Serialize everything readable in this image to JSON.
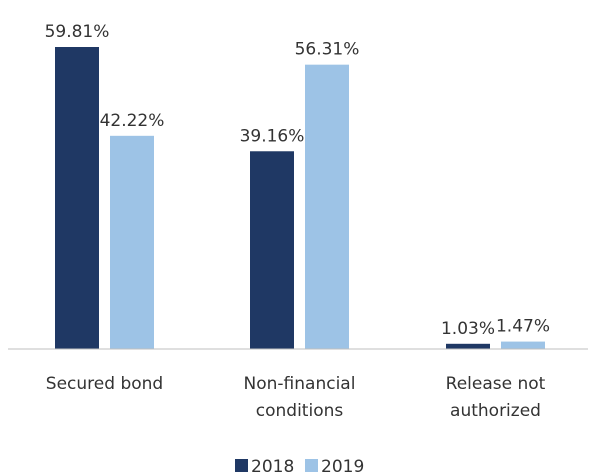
{
  "chart_data": {
    "type": "bar",
    "title": "",
    "xlabel": "",
    "ylabel": "",
    "categories": [
      [
        "Secured bond"
      ],
      [
        "Non-financial",
        "conditions"
      ],
      [
        "Release not",
        "authorized"
      ]
    ],
    "series": [
      {
        "name": "2018",
        "color": "#1f3864",
        "values": [
          59.81,
          39.16,
          1.03
        ],
        "labels": [
          "59.81%",
          "39.16%",
          "1.03%"
        ]
      },
      {
        "name": "2019",
        "color": "#9dc3e6",
        "values": [
          42.22,
          56.31,
          1.47
        ],
        "labels": [
          "42.22%",
          "56.31%",
          "1.47%"
        ]
      }
    ],
    "ylim": [
      0,
      60
    ],
    "grid": false,
    "legend_position": "bottom"
  }
}
